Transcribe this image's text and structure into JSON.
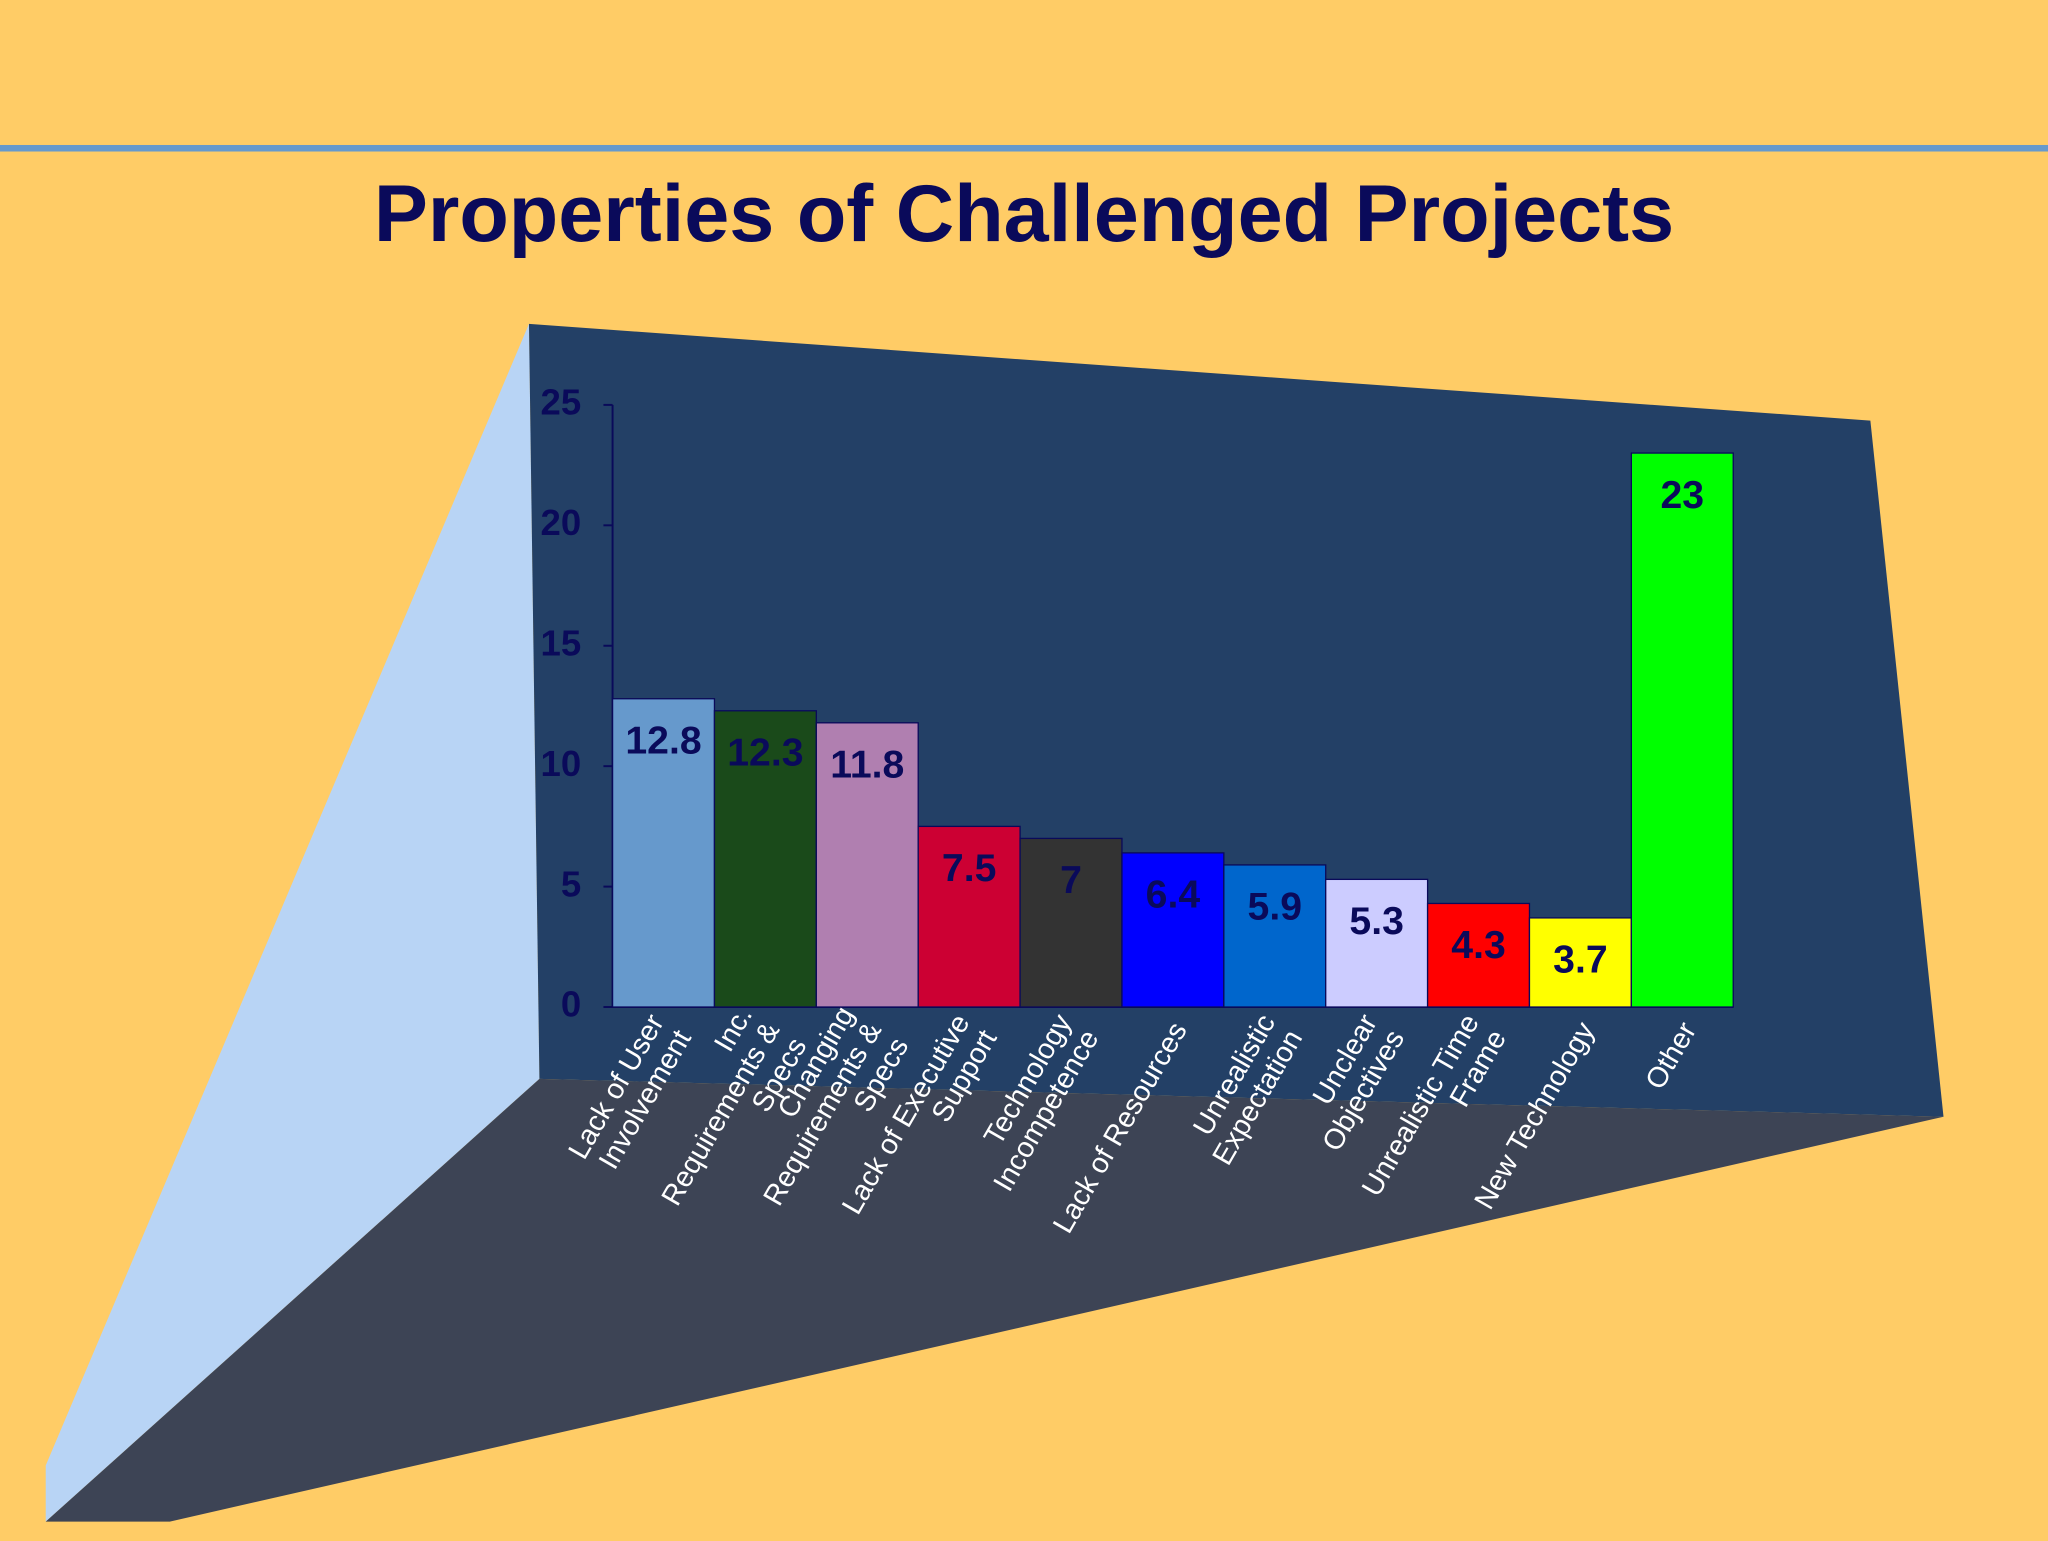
{
  "chart_data": {
    "type": "bar",
    "title": "Properties of Challenged Projects",
    "categories": [
      "Lack of User\nInvolvement",
      "Inc.\nRequirements &\nSpecs",
      "Changing\nRequirements &\nSpecs",
      "Lack of Executive\nSupport",
      "Technology\nIncompetence",
      "Lack of Resources",
      "Unrealistic\nExpectation",
      "Unclear\nObjectives",
      "Unrealistic Time\nFrame",
      "New Technology",
      "Other"
    ],
    "values": [
      12.8,
      12.3,
      11.8,
      7.5,
      7,
      6.4,
      5.9,
      5.3,
      4.3,
      3.7,
      23
    ],
    "colors": [
      "#6699cc",
      "#1a4a1a",
      "#b07fb0",
      "#cc0033",
      "#333333",
      "#0000ff",
      "#0066cc",
      "#ccccff",
      "#ff0000",
      "#ffff00",
      "#00ff00"
    ],
    "ylim": [
      0,
      25
    ],
    "yticks": [
      0,
      5,
      10,
      15,
      20,
      25
    ]
  }
}
